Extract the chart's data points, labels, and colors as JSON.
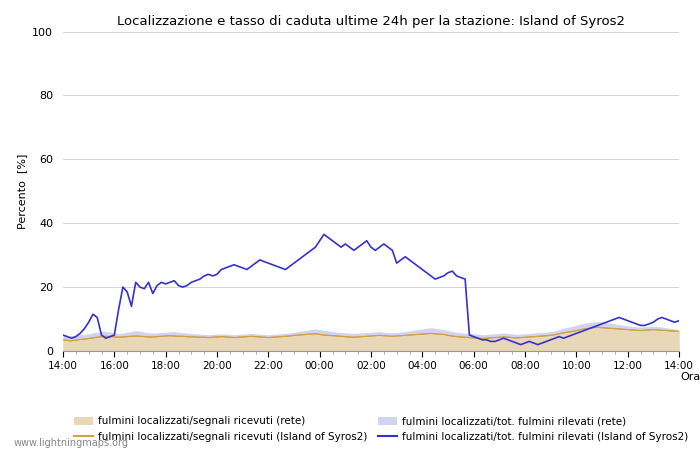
{
  "title": "Localizzazione e tasso di caduta ultime 24h per la stazione: Island of Syros2",
  "ylabel": "Percento  [%]",
  "xlabel": "Orario",
  "ylim": [
    0,
    100
  ],
  "yticks": [
    0,
    20,
    40,
    60,
    80,
    100
  ],
  "xtick_labels": [
    "14:00",
    "16:00",
    "18:00",
    "20:00",
    "22:00",
    "00:00",
    "02:00",
    "04:00",
    "06:00",
    "08:00",
    "10:00",
    "12:00",
    "14:00"
  ],
  "watermark": "www.lightningmaps.org",
  "bg_color": "#ffffff",
  "plot_bg_color": "#ffffff",
  "grid_color": "#cccccc",
  "color_net_fill": "#e8d8b8",
  "color_net_fill_alpha": 1.0,
  "color_station_fill": "#d0d4f0",
  "color_station_fill_alpha": 1.0,
  "color_net_line": "#d4a040",
  "color_station_line": "#3333cc",
  "legend_labels": [
    "fulmini localizzati/segnali ricevuti (rete)",
    "fulmini localizzati/segnali ricevuti (Island of Syros2)",
    "fulmini localizzati/tot. fulmini rilevati (rete)",
    "fulmini localizzati/tot. fulmini rilevati (Island of Syros2)"
  ],
  "net_loc_ratio": [
    3.5,
    3.3,
    3.2,
    3.4,
    3.6,
    3.7,
    3.9,
    4.1,
    4.3,
    4.5,
    4.6,
    4.5,
    4.4,
    4.3,
    4.4,
    4.5,
    4.6,
    4.7,
    4.6,
    4.5,
    4.4,
    4.4,
    4.5,
    4.6,
    4.7,
    4.8,
    4.7,
    4.6,
    4.6,
    4.5,
    4.4,
    4.4,
    4.3,
    4.3,
    4.2,
    4.3,
    4.4,
    4.5,
    4.4,
    4.3,
    4.2,
    4.3,
    4.4,
    4.5,
    4.6,
    4.5,
    4.4,
    4.3,
    4.2,
    4.3,
    4.4,
    4.5,
    4.6,
    4.7,
    4.9,
    5.0,
    5.1,
    5.2,
    5.3,
    5.4,
    5.2,
    5.0,
    4.9,
    4.8,
    4.7,
    4.6,
    4.5,
    4.4,
    4.3,
    4.4,
    4.5,
    4.6,
    4.7,
    4.8,
    4.9,
    4.8,
    4.7,
    4.6,
    4.7,
    4.8,
    4.9,
    5.0,
    5.1,
    5.2,
    5.3,
    5.4,
    5.5,
    5.4,
    5.3,
    5.2,
    4.9,
    4.7,
    4.5,
    4.4,
    4.3,
    4.2,
    4.1,
    4.0,
    3.9,
    4.0,
    4.1,
    4.2,
    4.3,
    4.4,
    4.3,
    4.2,
    4.1,
    4.2,
    4.3,
    4.4,
    4.5,
    4.6,
    4.7,
    4.8,
    4.9,
    5.1,
    5.4,
    5.7,
    5.9,
    6.1,
    6.4,
    6.7,
    6.9,
    7.1,
    7.3,
    7.4,
    7.3,
    7.2,
    7.1,
    7.0,
    6.9,
    6.8,
    6.7,
    6.6,
    6.5,
    6.4,
    6.5,
    6.6,
    6.7,
    6.6,
    6.5,
    6.4,
    6.3,
    6.2,
    6.1
  ],
  "net_total_ratio": [
    5.0,
    4.9,
    4.8,
    4.9,
    5.1,
    5.2,
    5.4,
    5.7,
    5.9,
    6.1,
    6.2,
    5.9,
    5.7,
    5.4,
    5.6,
    5.9,
    6.1,
    6.4,
    6.2,
    5.9,
    5.7,
    5.6,
    5.7,
    5.8,
    5.9,
    6.0,
    6.1,
    5.9,
    5.8,
    5.6,
    5.5,
    5.4,
    5.3,
    5.2,
    5.1,
    5.2,
    5.3,
    5.4,
    5.3,
    5.2,
    5.1,
    5.2,
    5.3,
    5.4,
    5.5,
    5.4,
    5.3,
    5.2,
    5.1,
    5.2,
    5.3,
    5.4,
    5.5,
    5.7,
    5.9,
    6.1,
    6.3,
    6.5,
    6.7,
    6.9,
    6.7,
    6.5,
    6.3,
    6.1,
    5.9,
    5.8,
    5.7,
    5.6,
    5.5,
    5.6,
    5.7,
    5.8,
    5.9,
    6.0,
    6.1,
    5.9,
    5.8,
    5.7,
    5.8,
    5.9,
    6.1,
    6.3,
    6.5,
    6.7,
    6.9,
    7.1,
    7.3,
    7.1,
    6.9,
    6.7,
    6.4,
    6.1,
    5.9,
    5.7,
    5.6,
    5.5,
    5.4,
    5.3,
    5.1,
    5.2,
    5.3,
    5.4,
    5.5,
    5.6,
    5.5,
    5.4,
    5.2,
    5.3,
    5.4,
    5.5,
    5.6,
    5.7,
    5.8,
    5.9,
    6.1,
    6.3,
    6.7,
    7.1,
    7.4,
    7.7,
    8.1,
    8.4,
    8.7,
    8.9,
    9.1,
    9.2,
    9.1,
    8.9,
    8.7,
    8.5,
    8.3,
    8.1,
    7.9,
    7.7,
    7.6,
    7.5,
    7.6,
    7.7,
    7.8,
    7.7,
    7.5,
    7.3,
    7.1,
    6.9,
    6.7
  ],
  "station_loc_ratio": [
    3.5,
    3.3,
    3.2,
    3.4,
    3.6,
    3.7,
    3.9,
    4.1,
    4.3,
    4.5,
    4.6,
    4.5,
    4.4,
    4.3,
    4.4,
    4.5,
    4.6,
    4.7,
    4.6,
    4.5,
    4.4,
    4.4,
    4.5,
    4.6,
    4.7,
    4.8,
    4.7,
    4.6,
    4.6,
    4.5,
    4.4,
    4.4,
    4.3,
    4.3,
    4.2,
    4.3,
    4.4,
    4.5,
    4.4,
    4.3,
    4.2,
    4.3,
    4.4,
    4.5,
    4.6,
    4.5,
    4.4,
    4.3,
    4.2,
    4.3,
    4.4,
    4.5,
    4.6,
    4.7,
    4.9,
    5.0,
    5.1,
    5.2,
    5.3,
    5.4,
    5.2,
    5.0,
    4.9,
    4.8,
    4.7,
    4.6,
    4.5,
    4.4,
    4.3,
    4.4,
    4.5,
    4.6,
    4.7,
    4.8,
    4.9,
    4.8,
    4.7,
    4.6,
    4.7,
    4.8,
    4.9,
    5.0,
    5.1,
    5.2,
    5.3,
    5.4,
    5.5,
    5.4,
    5.3,
    5.2,
    4.9,
    4.7,
    4.5,
    4.4,
    4.3,
    4.2,
    4.1,
    4.0,
    3.9,
    4.0,
    4.1,
    4.2,
    4.3,
    4.4,
    4.3,
    4.2,
    4.1,
    4.2,
    4.3,
    4.4,
    4.5,
    4.6,
    4.7,
    4.8,
    4.9,
    5.1,
    5.4,
    5.7,
    5.9,
    6.1,
    6.4,
    6.7,
    6.9,
    7.1,
    7.3,
    7.4,
    7.3,
    7.2,
    7.1,
    7.0,
    6.9,
    6.8,
    6.7,
    6.6,
    6.5,
    6.4,
    6.5,
    6.6,
    6.7,
    6.6,
    6.5,
    6.4,
    6.3,
    6.2,
    6.1
  ],
  "station_total_ratio": [
    5.0,
    4.5,
    4.0,
    4.5,
    5.5,
    7.0,
    9.0,
    11.5,
    10.5,
    5.0,
    4.0,
    4.5,
    5.0,
    13.0,
    20.0,
    18.5,
    14.0,
    21.5,
    20.0,
    19.5,
    21.5,
    18.0,
    20.5,
    21.5,
    21.0,
    21.5,
    22.0,
    20.5,
    20.0,
    20.5,
    21.5,
    22.0,
    22.5,
    23.5,
    24.0,
    23.5,
    24.0,
    25.5,
    26.0,
    26.5,
    27.0,
    26.5,
    26.0,
    25.5,
    26.5,
    27.5,
    28.5,
    28.0,
    27.5,
    27.0,
    26.5,
    26.0,
    25.5,
    26.5,
    27.5,
    28.5,
    29.5,
    30.5,
    31.5,
    32.5,
    34.5,
    36.5,
    35.5,
    34.5,
    33.5,
    32.5,
    33.5,
    32.5,
    31.5,
    32.5,
    33.5,
    34.5,
    32.5,
    31.5,
    32.5,
    33.5,
    32.5,
    31.5,
    27.5,
    28.5,
    29.5,
    28.5,
    27.5,
    26.5,
    25.5,
    24.5,
    23.5,
    22.5,
    23.0,
    23.5,
    24.5,
    25.0,
    23.5,
    23.0,
    22.5,
    5.0,
    4.5,
    4.0,
    3.5,
    3.5,
    3.0,
    3.0,
    3.5,
    4.0,
    3.5,
    3.0,
    2.5,
    2.0,
    2.5,
    3.0,
    2.5,
    2.0,
    2.5,
    3.0,
    3.5,
    4.0,
    4.5,
    4.0,
    4.5,
    5.0,
    5.5,
    6.0,
    6.5,
    7.0,
    7.5,
    8.0,
    8.5,
    9.0,
    9.5,
    10.0,
    10.5,
    10.0,
    9.5,
    9.0,
    8.5,
    8.0,
    8.0,
    8.5,
    9.0,
    10.0,
    10.5,
    10.0,
    9.5,
    9.0,
    9.5
  ]
}
